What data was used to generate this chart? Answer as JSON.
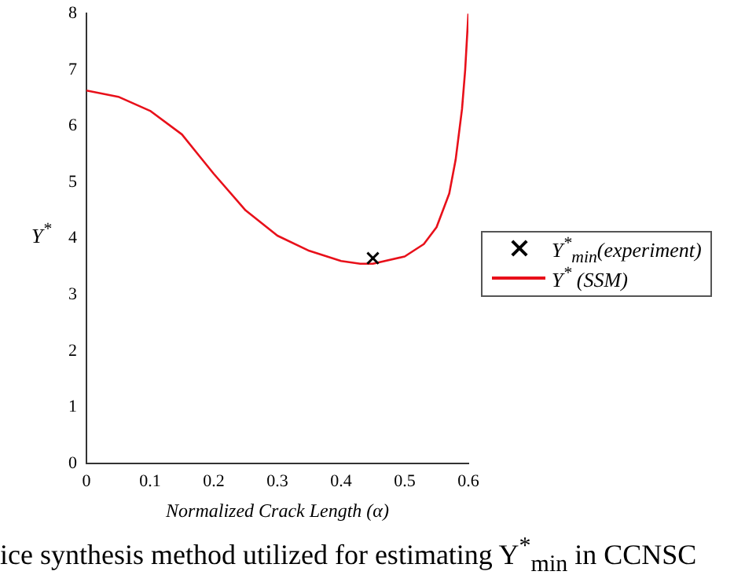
{
  "chart_data": {
    "type": "line",
    "xlabel": "Normalized Crack Length (α)",
    "ylabel": "Y$^{*}$",
    "xlim": [
      0,
      0.6
    ],
    "xticks": [
      0,
      0.1,
      0.2,
      0.3,
      0.4,
      0.5,
      0.6
    ],
    "ylim": [
      0,
      8
    ],
    "yticks": [
      0,
      1,
      2,
      3,
      4,
      5,
      6,
      7,
      8
    ],
    "grid": false,
    "legend": "right",
    "line_style": "solid",
    "series": [
      {
        "type": "scatter",
        "name": "Y$^{*}$$_{min}$(experiment)",
        "color": "#000000",
        "marker": "cross",
        "x": [
          0.45
        ],
        "values": [
          3.65
        ]
      },
      {
        "name": "Y$^{*}$ (SSM)",
        "color": "#e8101a",
        "marker": "none",
        "x": [
          0,
          0.05,
          0.1,
          0.15,
          0.2,
          0.25,
          0.3,
          0.35,
          0.4,
          0.43,
          0.45,
          0.5,
          0.53,
          0.55,
          0.57,
          0.58,
          0.59,
          0.595,
          0.6
        ],
        "values": [
          6.63,
          6.52,
          6.27,
          5.85,
          5.15,
          4.5,
          4.05,
          3.78,
          3.6,
          3.55,
          3.55,
          3.68,
          3.9,
          4.2,
          4.8,
          5.4,
          6.3,
          7,
          8
        ]
      }
    ],
    "annotations": [
      "ice synthesis method utilized for estimating Y$^{*}$$_{min}$ in CCNSC"
    ]
  }
}
